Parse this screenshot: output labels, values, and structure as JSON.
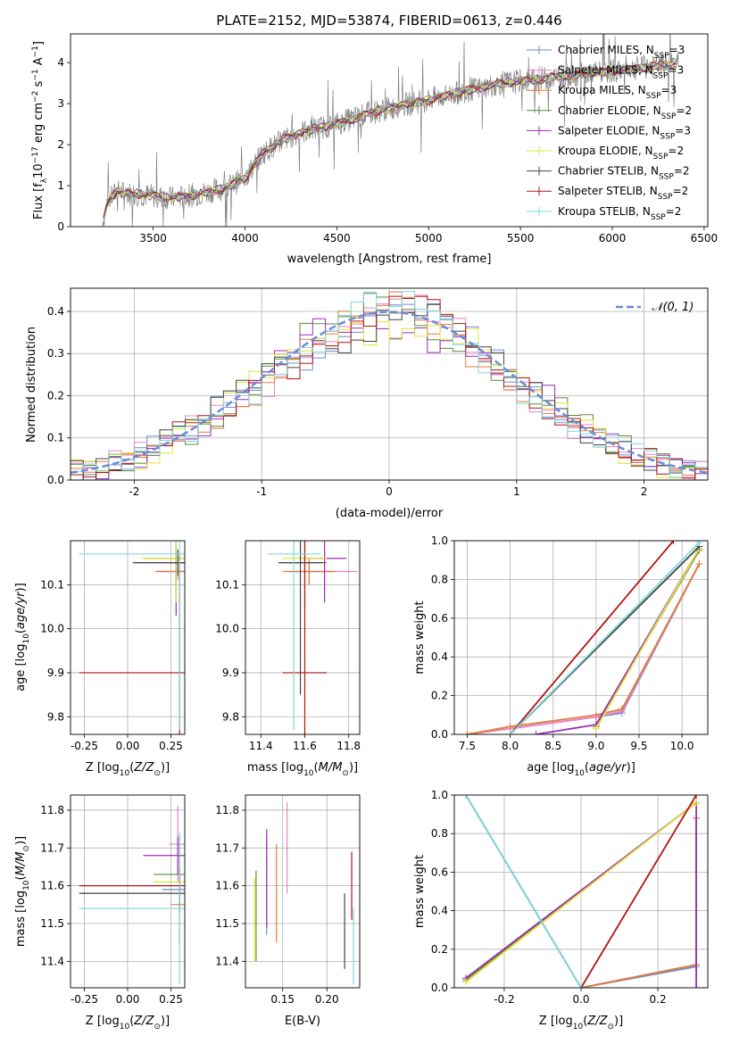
{
  "figure_title": "PLATE=2152, MJD=53874, FIBERID=0613, z=0.446",
  "series_styles": [
    {
      "name": "Chabrier MILES, N$_{SSP}$=3",
      "label_main": "Chabrier MILES, N",
      "label_sub": "SSP",
      "label_tail": "=3",
      "color": "#6b8bd6"
    },
    {
      "name": "Salpeter MILES, N$_{SSP}$=3",
      "label_main": "Salpeter MILES, N",
      "label_sub": "SSP",
      "label_tail": "=3",
      "color": "#ee82c9"
    },
    {
      "name": "Kroupa MILES, N$_{SSP}$=3",
      "label_main": "Kroupa MILES, N",
      "label_sub": "SSP",
      "label_tail": "=3",
      "color": "#e07b39"
    },
    {
      "name": "Chabrier ELODIE, N$_{SSP}$=2",
      "label_main": "Chabrier ELODIE, N",
      "label_sub": "SSP",
      "label_tail": "=2",
      "color": "#5b8a3a"
    },
    {
      "name": "Salpeter ELODIE, N$_{SSP}$=3",
      "label_main": "Salpeter ELODIE, N",
      "label_sub": "SSP",
      "label_tail": "=3",
      "color": "#9b2fb5"
    },
    {
      "name": "Kroupa ELODIE, N$_{SSP}$=2",
      "label_main": "Kroupa ELODIE, N",
      "label_sub": "SSP",
      "label_tail": "=2",
      "color": "#e3e43a"
    },
    {
      "name": "Chabrier STELIB, N$_{SSP}$=2",
      "label_main": "Chabrier STELIB, N",
      "label_sub": "SSP",
      "label_tail": "=2",
      "color": "#444444"
    },
    {
      "name": "Salpeter STELIB, N$_{SSP}$=2",
      "label_main": "Salpeter STELIB, N",
      "label_sub": "SSP",
      "label_tail": "=2",
      "color": "#b21414"
    },
    {
      "name": "Kroupa STELIB, N$_{SSP}$=2",
      "label_main": "Kroupa STELIB, N",
      "label_sub": "SSP",
      "label_tail": "=2",
      "color": "#7fd8da"
    }
  ],
  "chart_data": [
    {
      "id": "spectrum",
      "type": "line",
      "xlabel": "wavelength [Angstrom, rest frame]",
      "ylabel": "Flux [f$_\\lambda$10$^{-17}$ erg cm$^{-2}$ s$^{-1}$ A$^{-1}$]",
      "xlim": [
        3050,
        6520
      ],
      "ylim": [
        0,
        4.7
      ],
      "xticks": [
        3500,
        4000,
        4500,
        5000,
        5500,
        6000,
        6500
      ],
      "yticks": [
        0,
        1,
        2,
        3,
        4
      ],
      "grid": false,
      "legend": "top-right",
      "data_color": "#808080",
      "model_trend": {
        "x": [
          3220,
          3250,
          3300,
          3400,
          3500,
          3600,
          3700,
          3800,
          3900,
          4000,
          4100,
          4200,
          4300,
          4400,
          4500,
          4600,
          4700,
          4800,
          4900,
          5000,
          5100,
          5200,
          5300,
          5400,
          5500,
          5600,
          5700,
          5800,
          5900,
          6000,
          6100,
          6200,
          6300,
          6360
        ],
        "y": [
          0.0,
          0.6,
          0.85,
          0.8,
          0.75,
          0.7,
          0.75,
          0.85,
          0.95,
          1.2,
          1.8,
          2.1,
          2.3,
          2.4,
          2.5,
          2.65,
          2.8,
          2.9,
          3.0,
          3.1,
          3.2,
          3.3,
          3.4,
          3.5,
          3.55,
          3.6,
          3.65,
          3.7,
          3.75,
          3.8,
          3.85,
          3.9,
          3.95,
          4.0
        ]
      }
    },
    {
      "id": "residuals",
      "type": "line",
      "xlabel": "(data-model)/error",
      "ylabel": "Normed distribution",
      "xlim": [
        -2.5,
        2.5
      ],
      "ylim": [
        0,
        0.455
      ],
      "xticks": [
        -2,
        -1,
        0,
        1,
        2
      ],
      "yticks": [
        0.0,
        0.1,
        0.2,
        0.3,
        0.4
      ],
      "grid": true,
      "legend": "top-right",
      "reference": {
        "name": "$\\mathcal{N}(0,1)$",
        "label": "𝒩(0, 1)",
        "mean": 0,
        "sigma": 1,
        "color": "#6b8bd6",
        "style": "dashed"
      }
    },
    {
      "id": "age_vs_Z",
      "type": "scatter",
      "xlabel": "Z [log$_{10}$(Z/Z$_\\odot$)]",
      "ylabel": "age  [log$_{10}$(age/yr)]",
      "xlim": [
        -0.33,
        0.33
      ],
      "ylim": [
        9.76,
        10.2
      ],
      "xticks": [
        -0.25,
        0.0,
        0.25
      ],
      "yticks": [
        9.8,
        9.9,
        10.0,
        10.1
      ],
      "grid": true
    },
    {
      "id": "age_vs_mass",
      "type": "scatter",
      "xlabel": "mass [log$_{10}$(M/M$_\\odot$)]",
      "ylabel": "",
      "xlim": [
        11.33,
        11.85
      ],
      "ylim": [
        9.76,
        10.2
      ],
      "xticks": [
        11.4,
        11.6,
        11.8
      ],
      "yticks": [
        9.8,
        9.9,
        10.0,
        10.1
      ],
      "grid": true
    },
    {
      "id": "cumulative_age",
      "type": "line",
      "xlabel": "age  [log$_{10}$(age/yr)]",
      "ylabel": "mass weight",
      "xlim": [
        7.35,
        10.3
      ],
      "ylim": [
        0,
        1.0
      ],
      "xticks": [
        7.5,
        8.0,
        8.5,
        9.0,
        9.5,
        10.0
      ],
      "yticks": [
        0.0,
        0.2,
        0.4,
        0.6,
        0.8,
        1.0
      ],
      "grid": true,
      "series": [
        {
          "name": "Chabrier MILES",
          "x": [
            7.5,
            8.0,
            9.0,
            9.3,
            10.2
          ],
          "y": [
            0.0,
            0.03,
            0.09,
            0.11,
            0.88
          ]
        },
        {
          "name": "Salpeter MILES",
          "x": [
            7.5,
            8.0,
            9.0,
            9.3,
            10.2
          ],
          "y": [
            0.0,
            0.03,
            0.09,
            0.12,
            0.88
          ]
        },
        {
          "name": "Kroupa MILES",
          "x": [
            7.5,
            8.0,
            9.0,
            9.3,
            10.2
          ],
          "y": [
            0.0,
            0.04,
            0.1,
            0.13,
            0.88
          ]
        },
        {
          "name": "Chabrier ELODIE",
          "x": [
            9.0,
            10.2
          ],
          "y": [
            0.04,
            0.95
          ]
        },
        {
          "name": "Salpeter ELODIE",
          "x": [
            8.3,
            9.0,
            10.2
          ],
          "y": [
            0.0,
            0.05,
            0.96
          ]
        },
        {
          "name": "Kroupa ELODIE",
          "x": [
            9.0,
            10.2
          ],
          "y": [
            0.03,
            0.96
          ]
        },
        {
          "name": "Chabrier STELIB",
          "x": [
            8.0,
            10.2
          ],
          "y": [
            0.0,
            0.97
          ]
        },
        {
          "name": "Salpeter STELIB",
          "x": [
            8.0,
            9.9
          ],
          "y": [
            0.0,
            1.0
          ]
        },
        {
          "name": "Kroupa STELIB",
          "x": [
            8.0,
            10.2
          ],
          "y": [
            0.0,
            0.99
          ]
        }
      ]
    },
    {
      "id": "mass_vs_Z",
      "type": "scatter",
      "xlabel": "Z [log$_{10}$(Z/Z$_\\odot$)]",
      "ylabel": "mass [log$_{10}$(M/M$_\\odot$)]",
      "xlim": [
        -0.33,
        0.33
      ],
      "ylim": [
        11.33,
        11.84
      ],
      "xticks": [
        -0.25,
        0.0,
        0.25
      ],
      "yticks": [
        11.4,
        11.5,
        11.6,
        11.7,
        11.8
      ],
      "grid": true
    },
    {
      "id": "mass_vs_ebv",
      "type": "scatter",
      "xlabel": "E(B-V)",
      "ylabel": "",
      "xlim": [
        0.108,
        0.237
      ],
      "ylim": [
        11.33,
        11.84
      ],
      "xticks": [
        0.15,
        0.2
      ],
      "yticks": [
        11.4,
        11.5,
        11.6,
        11.7,
        11.8
      ],
      "grid": true,
      "series": [
        {
          "name": "Chabrier MILES",
          "x": 0.132,
          "y": 11.6,
          "yerr": 0.13
        },
        {
          "name": "Salpeter MILES",
          "x": 0.155,
          "y": 11.7,
          "yerr": 0.12
        },
        {
          "name": "Kroupa MILES",
          "x": 0.143,
          "y": 11.58,
          "yerr": 0.13
        },
        {
          "name": "Chabrier ELODIE",
          "x": 0.12,
          "y": 11.52,
          "yerr": 0.12
        },
        {
          "name": "Salpeter ELODIE",
          "x": 0.132,
          "y": 11.62,
          "yerr": 0.13
        },
        {
          "name": "Kroupa ELODIE",
          "x": 0.118,
          "y": 11.51,
          "yerr": 0.11
        },
        {
          "name": "Chabrier STELIB",
          "x": 0.22,
          "y": 11.48,
          "yerr": 0.1
        },
        {
          "name": "Salpeter STELIB",
          "x": 0.228,
          "y": 11.6,
          "yerr": 0.09
        },
        {
          "name": "Kroupa STELIB",
          "x": 0.23,
          "y": 11.44,
          "yerr": 0.1
        }
      ]
    },
    {
      "id": "cumulative_Z",
      "type": "line",
      "xlabel": "Z [log$_{10}$(Z/Z$_\\odot$)]",
      "ylabel": "mass weight",
      "xlim": [
        -0.33,
        0.33
      ],
      "ylim": [
        0,
        1.0
      ],
      "xticks": [
        -0.2,
        0.0,
        0.2
      ],
      "yticks": [
        0.0,
        0.2,
        0.4,
        0.6,
        0.8,
        1.0
      ],
      "grid": true,
      "series": [
        {
          "name": "Chabrier MILES",
          "x": [
            0.0,
            0.3,
            0.3
          ],
          "y": [
            0.0,
            0.11,
            0.88
          ]
        },
        {
          "name": "Salpeter MILES",
          "x": [
            0.0,
            0.3,
            0.3
          ],
          "y": [
            0.0,
            0.12,
            0.88
          ]
        },
        {
          "name": "Kroupa MILES",
          "x": [
            0.0,
            0.3,
            0.3
          ],
          "y": [
            0.0,
            0.12,
            0.88
          ]
        },
        {
          "name": "Chabrier ELODIE",
          "x": [
            -0.3,
            0.3
          ],
          "y": [
            0.04,
            0.96
          ]
        },
        {
          "name": "Salpeter ELODIE",
          "x": [
            -0.3,
            0.3,
            0.3
          ],
          "y": [
            0.05,
            0.96,
            0.0
          ]
        },
        {
          "name": "Kroupa ELODIE",
          "x": [
            -0.3,
            0.3
          ],
          "y": [
            0.03,
            0.96
          ]
        },
        {
          "name": "Chabrier STELIB",
          "x": [
            -0.3,
            0.0
          ],
          "y": [
            1.0,
            0.0
          ]
        },
        {
          "name": "Salpeter STELIB",
          "x": [
            0.0,
            0.3
          ],
          "y": [
            0.0,
            1.0
          ]
        },
        {
          "name": "Kroupa STELIB",
          "x": [
            -0.3,
            0.0
          ],
          "y": [
            1.0,
            0.0
          ]
        }
      ]
    }
  ]
}
